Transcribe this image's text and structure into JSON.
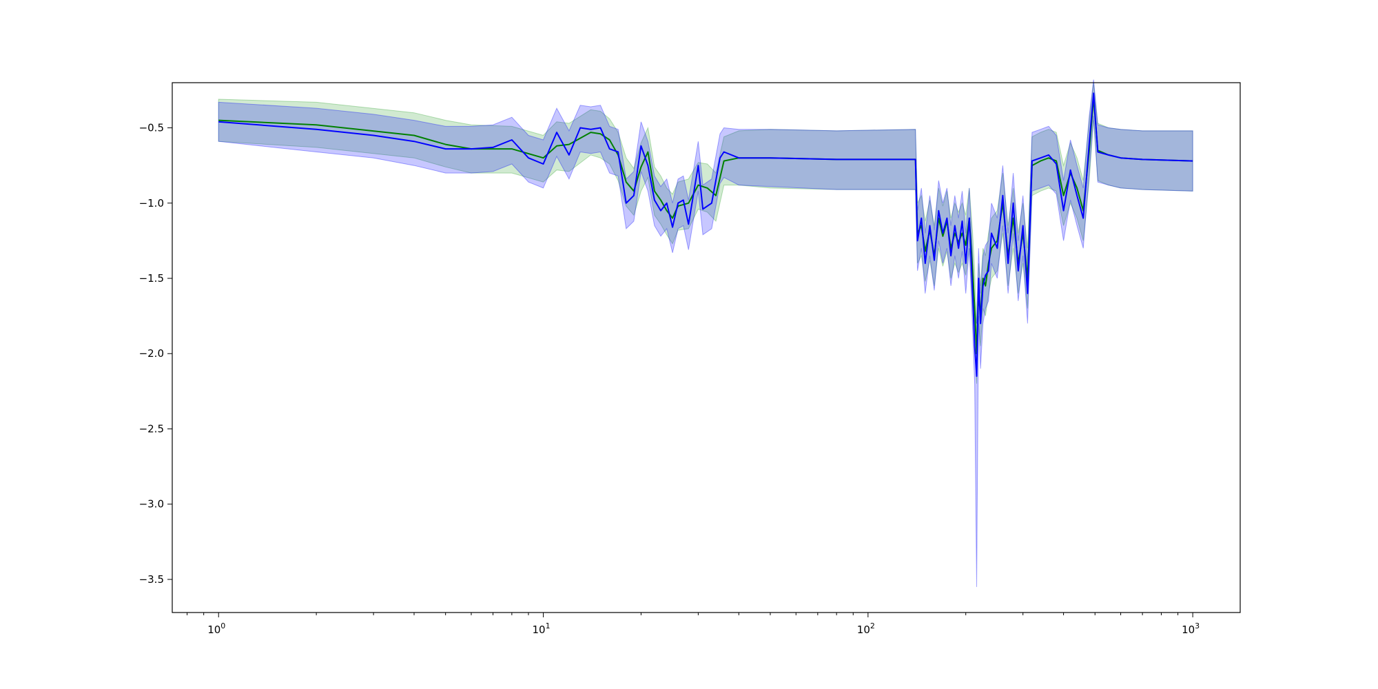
{
  "chart_data": {
    "type": "line",
    "xscale": "log",
    "xlim": [
      0.72,
      1400
    ],
    "ylim": [
      -3.72,
      -0.2
    ],
    "grid": false,
    "legend": "none",
    "x_ticks": [
      {
        "value": 1,
        "base": "10",
        "exp": "0"
      },
      {
        "value": 10,
        "base": "10",
        "exp": "1"
      },
      {
        "value": 100,
        "base": "10",
        "exp": "2"
      },
      {
        "value": 1000,
        "base": "10",
        "exp": "3"
      }
    ],
    "y_ticks": [
      {
        "value": -0.5,
        "label": "−0.5"
      },
      {
        "value": -1.0,
        "label": "−1.0"
      },
      {
        "value": -1.5,
        "label": "−1.5"
      },
      {
        "value": -2.0,
        "label": "−2.0"
      },
      {
        "value": -2.5,
        "label": "−2.5"
      },
      {
        "value": -3.0,
        "label": "−3.0"
      },
      {
        "value": -3.5,
        "label": "−3.5"
      }
    ],
    "series": [
      {
        "color": "#008000",
        "band_color": "#2ca02c",
        "band_opacity": 0.22,
        "points": [
          [
            1,
            -0.45,
            -0.31,
            -0.59
          ],
          [
            2,
            -0.48,
            -0.33,
            -0.63
          ],
          [
            4,
            -0.55,
            -0.4,
            -0.7
          ],
          [
            5,
            -0.61,
            -0.45,
            -0.76
          ],
          [
            6,
            -0.64,
            -0.48,
            -0.8
          ],
          [
            8,
            -0.64,
            -0.49,
            -0.8
          ],
          [
            10,
            -0.7,
            -0.55,
            -0.86
          ],
          [
            11,
            -0.62,
            -0.46,
            -0.78
          ],
          [
            12,
            -0.61,
            -0.47,
            -0.79
          ],
          [
            14,
            -0.53,
            -0.38,
            -0.68
          ],
          [
            15,
            -0.54,
            -0.39,
            -0.7
          ],
          [
            16,
            -0.58,
            -0.44,
            -0.74
          ],
          [
            17,
            -0.68,
            -0.53,
            -0.85
          ],
          [
            18,
            -0.86,
            -0.7,
            -1.02
          ],
          [
            19,
            -0.92,
            -0.77,
            -1.08
          ],
          [
            20,
            -0.76,
            -0.6,
            -0.92
          ],
          [
            21,
            -0.66,
            -0.5,
            -0.83
          ],
          [
            22,
            -0.92,
            -0.76,
            -1.08
          ],
          [
            23,
            -0.98,
            -0.82,
            -1.14
          ],
          [
            24,
            -1.05,
            -0.9,
            -1.21
          ],
          [
            25,
            -1.1,
            -0.94,
            -1.27
          ],
          [
            26,
            -1.02,
            -0.86,
            -1.18
          ],
          [
            28,
            -1.0,
            -0.84,
            -1.17
          ],
          [
            30,
            -0.88,
            -0.73,
            -1.04
          ],
          [
            32,
            -0.9,
            -0.74,
            -1.06
          ],
          [
            34,
            -0.95,
            -0.8,
            -1.12
          ],
          [
            36,
            -0.72,
            -0.56,
            -0.88
          ],
          [
            40,
            -0.7,
            -0.52,
            -0.88
          ],
          [
            50,
            -0.7,
            -0.51,
            -0.9
          ],
          [
            80,
            -0.71,
            -0.52,
            -0.91
          ],
          [
            140,
            -0.71,
            -0.51,
            -0.91
          ],
          [
            142,
            -1.2,
            -1.0,
            -1.4
          ],
          [
            146,
            -1.15,
            -0.95,
            -1.35
          ],
          [
            150,
            -1.32,
            -1.12,
            -1.52
          ],
          [
            155,
            -1.18,
            -0.98,
            -1.38
          ],
          [
            160,
            -1.35,
            -1.15,
            -1.55
          ],
          [
            165,
            -1.1,
            -0.9,
            -1.3
          ],
          [
            170,
            -1.22,
            -1.02,
            -1.42
          ],
          [
            175,
            -1.12,
            -0.92,
            -1.32
          ],
          [
            180,
            -1.3,
            -1.1,
            -1.5
          ],
          [
            185,
            -1.2,
            -1.0,
            -1.4
          ],
          [
            190,
            -1.26,
            -1.06,
            -1.46
          ],
          [
            195,
            -1.2,
            -1.0,
            -1.4
          ],
          [
            200,
            -1.28,
            -1.08,
            -1.48
          ],
          [
            205,
            -1.1,
            -0.9,
            -1.3
          ],
          [
            210,
            -1.45,
            -1.2,
            -1.7
          ],
          [
            213,
            -1.7,
            -1.45,
            -1.95
          ],
          [
            216,
            -2.0,
            -1.8,
            -2.2
          ],
          [
            219,
            -1.6,
            -1.4,
            -1.8
          ],
          [
            222,
            -1.75,
            -1.55,
            -1.95
          ],
          [
            226,
            -1.5,
            -1.3,
            -1.7
          ],
          [
            230,
            -1.55,
            -1.35,
            -1.75
          ],
          [
            235,
            -1.4,
            -1.2,
            -1.6
          ],
          [
            240,
            -1.3,
            -1.1,
            -1.5
          ],
          [
            250,
            -1.25,
            -1.05,
            -1.45
          ],
          [
            260,
            -1.0,
            -0.8,
            -1.2
          ],
          [
            270,
            -1.35,
            -1.15,
            -1.55
          ],
          [
            280,
            -1.1,
            -0.9,
            -1.3
          ],
          [
            290,
            -1.4,
            -1.2,
            -1.6
          ],
          [
            300,
            -1.2,
            -1.0,
            -1.4
          ],
          [
            310,
            -1.5,
            -1.3,
            -1.7
          ],
          [
            320,
            -0.75,
            -0.56,
            -0.95
          ],
          [
            340,
            -0.72,
            -0.53,
            -0.92
          ],
          [
            360,
            -0.7,
            -0.51,
            -0.9
          ],
          [
            380,
            -0.72,
            -0.53,
            -0.92
          ],
          [
            400,
            -0.95,
            -0.75,
            -1.15
          ],
          [
            420,
            -0.8,
            -0.6,
            -1.0
          ],
          [
            440,
            -0.9,
            -0.7,
            -1.1
          ],
          [
            460,
            -1.05,
            -0.85,
            -1.25
          ],
          [
            480,
            -0.65,
            -0.45,
            -0.85
          ],
          [
            495,
            -0.3,
            -0.2,
            -0.45
          ],
          [
            510,
            -0.65,
            -0.47,
            -0.85
          ],
          [
            550,
            -0.68,
            -0.5,
            -0.88
          ],
          [
            600,
            -0.7,
            -0.51,
            -0.9
          ],
          [
            700,
            -0.71,
            -0.52,
            -0.91
          ],
          [
            1000,
            -0.72,
            -0.52,
            -0.92
          ]
        ]
      },
      {
        "color": "#0000ff",
        "band_color": "#0000ff",
        "band_opacity": 0.22,
        "points": [
          [
            1,
            -0.46,
            -0.33,
            -0.59
          ],
          [
            2,
            -0.51,
            -0.37,
            -0.66
          ],
          [
            3,
            -0.55,
            -0.41,
            -0.7
          ],
          [
            4,
            -0.59,
            -0.45,
            -0.75
          ],
          [
            5,
            -0.64,
            -0.49,
            -0.8
          ],
          [
            6,
            -0.64,
            -0.49,
            -0.8
          ],
          [
            7,
            -0.63,
            -0.48,
            -0.79
          ],
          [
            8,
            -0.58,
            -0.43,
            -0.74
          ],
          [
            9,
            -0.7,
            -0.55,
            -0.86
          ],
          [
            10,
            -0.74,
            -0.58,
            -0.9
          ],
          [
            11,
            -0.53,
            -0.37,
            -0.69
          ],
          [
            12,
            -0.68,
            -0.52,
            -0.84
          ],
          [
            13,
            -0.5,
            -0.35,
            -0.66
          ],
          [
            14,
            -0.51,
            -0.36,
            -0.67
          ],
          [
            15,
            -0.5,
            -0.35,
            -0.66
          ],
          [
            16,
            -0.64,
            -0.49,
            -0.8
          ],
          [
            17,
            -0.66,
            -0.51,
            -0.82
          ],
          [
            18,
            -1.0,
            -0.84,
            -1.17
          ],
          [
            19,
            -0.95,
            -0.79,
            -1.12
          ],
          [
            20,
            -0.62,
            -0.46,
            -0.79
          ],
          [
            21,
            -0.75,
            -0.59,
            -0.92
          ],
          [
            22,
            -0.98,
            -0.82,
            -1.15
          ],
          [
            23,
            -1.05,
            -0.89,
            -1.22
          ],
          [
            24,
            -1.0,
            -0.84,
            -1.17
          ],
          [
            25,
            -1.16,
            -1.0,
            -1.33
          ],
          [
            26,
            -1.0,
            -0.84,
            -1.17
          ],
          [
            27,
            -0.98,
            -0.82,
            -1.15
          ],
          [
            28,
            -1.14,
            -0.98,
            -1.31
          ],
          [
            30,
            -0.75,
            -0.59,
            -0.92
          ],
          [
            31,
            -1.04,
            -0.88,
            -1.21
          ],
          [
            33,
            -1.0,
            -0.84,
            -1.17
          ],
          [
            35,
            -0.7,
            -0.54,
            -0.87
          ],
          [
            36,
            -0.66,
            -0.5,
            -0.83
          ],
          [
            40,
            -0.7,
            -0.51,
            -0.88
          ],
          [
            50,
            -0.7,
            -0.51,
            -0.89
          ],
          [
            80,
            -0.71,
            -0.52,
            -0.91
          ],
          [
            140,
            -0.71,
            -0.51,
            -0.91
          ],
          [
            142,
            -1.25,
            -1.05,
            -1.45
          ],
          [
            146,
            -1.1,
            -0.9,
            -1.3
          ],
          [
            150,
            -1.4,
            -1.2,
            -1.6
          ],
          [
            155,
            -1.15,
            -0.95,
            -1.35
          ],
          [
            160,
            -1.38,
            -1.18,
            -1.58
          ],
          [
            165,
            -1.05,
            -0.85,
            -1.25
          ],
          [
            170,
            -1.2,
            -1.0,
            -1.4
          ],
          [
            175,
            -1.1,
            -0.9,
            -1.3
          ],
          [
            180,
            -1.35,
            -1.15,
            -1.55
          ],
          [
            185,
            -1.15,
            -0.95,
            -1.35
          ],
          [
            190,
            -1.3,
            -1.1,
            -1.5
          ],
          [
            195,
            -1.12,
            -0.92,
            -1.32
          ],
          [
            200,
            -1.4,
            -1.2,
            -1.6
          ],
          [
            205,
            -1.1,
            -0.9,
            -1.3
          ],
          [
            210,
            -1.6,
            -1.35,
            -1.85
          ],
          [
            213,
            -1.95,
            -1.7,
            -2.2
          ],
          [
            216,
            -2.15,
            -1.8,
            -3.55
          ],
          [
            219,
            -1.5,
            -1.3,
            -1.75
          ],
          [
            222,
            -1.8,
            -1.6,
            -2.1
          ],
          [
            226,
            -1.55,
            -1.35,
            -1.8
          ],
          [
            230,
            -1.48,
            -1.28,
            -1.7
          ],
          [
            235,
            -1.45,
            -1.25,
            -1.65
          ],
          [
            240,
            -1.2,
            -1.0,
            -1.4
          ],
          [
            250,
            -1.3,
            -1.1,
            -1.5
          ],
          [
            260,
            -0.95,
            -0.75,
            -1.15
          ],
          [
            270,
            -1.4,
            -1.2,
            -1.6
          ],
          [
            280,
            -1.0,
            -0.8,
            -1.2
          ],
          [
            290,
            -1.45,
            -1.25,
            -1.65
          ],
          [
            300,
            -1.15,
            -0.95,
            -1.35
          ],
          [
            310,
            -1.6,
            -1.4,
            -1.8
          ],
          [
            320,
            -0.72,
            -0.53,
            -0.92
          ],
          [
            340,
            -0.7,
            -0.51,
            -0.9
          ],
          [
            360,
            -0.68,
            -0.49,
            -0.88
          ],
          [
            380,
            -0.74,
            -0.55,
            -0.94
          ],
          [
            400,
            -1.05,
            -0.85,
            -1.25
          ],
          [
            420,
            -0.78,
            -0.58,
            -0.98
          ],
          [
            440,
            -0.95,
            -0.75,
            -1.15
          ],
          [
            460,
            -1.1,
            -0.9,
            -1.3
          ],
          [
            480,
            -0.6,
            -0.42,
            -0.8
          ],
          [
            495,
            -0.27,
            -0.18,
            -0.42
          ],
          [
            510,
            -0.66,
            -0.48,
            -0.86
          ],
          [
            550,
            -0.68,
            -0.5,
            -0.88
          ],
          [
            600,
            -0.7,
            -0.51,
            -0.9
          ],
          [
            700,
            -0.71,
            -0.52,
            -0.91
          ],
          [
            1000,
            -0.72,
            -0.52,
            -0.92
          ]
        ]
      }
    ]
  }
}
